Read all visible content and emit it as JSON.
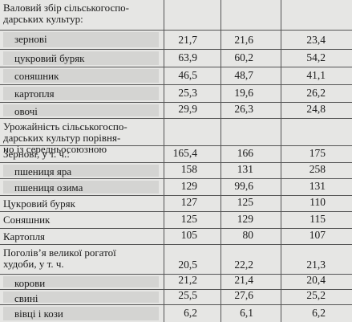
{
  "table": {
    "rows": [
      {
        "label": [
          "Валовий збір сільськогоспо-",
          "дарських культур:"
        ],
        "values": [
          "",
          "",
          ""
        ],
        "indent": false
      },
      {
        "label": [
          "зернові"
        ],
        "values": [
          "21,7",
          "21,6",
          "23,4"
        ],
        "indent": true
      },
      {
        "label": [
          "цукровий буряк"
        ],
        "values": [
          "63,9",
          "60,2",
          "54,2"
        ],
        "indent": true
      },
      {
        "label": [
          "соняшник"
        ],
        "values": [
          "46,5",
          "48,7",
          "41,1"
        ],
        "indent": true
      },
      {
        "label": [
          "картопля"
        ],
        "values": [
          "25,3",
          "19,6",
          "26,2"
        ],
        "indent": true
      },
      {
        "label": [
          "овочі"
        ],
        "values": [
          "29,9",
          "26,3",
          "24,8"
        ],
        "indent": true
      },
      {
        "label": [
          "Урожайність сільськогоспо-",
          "дарських культур порівня-",
          "но із середньосоюзною"
        ],
        "values": [
          "",
          "",
          ""
        ],
        "indent": false
      },
      {
        "label": [
          "Зернові, у т. ч.:"
        ],
        "values": [
          "165,4",
          "166",
          "175"
        ],
        "indent": false
      },
      {
        "label": [
          "пшениця яра"
        ],
        "values": [
          "158",
          "131",
          "258"
        ],
        "indent": true
      },
      {
        "label": [
          "пшениця озима"
        ],
        "values": [
          "129",
          "99,6",
          "131"
        ],
        "indent": true
      },
      {
        "label": [
          "Цукровий буряк"
        ],
        "values": [
          "127",
          "125",
          "110"
        ],
        "indent": false
      },
      {
        "label": [
          "Соняшник"
        ],
        "values": [
          "125",
          "129",
          "115"
        ],
        "indent": false
      },
      {
        "label": [
          "Картопля"
        ],
        "values": [
          "105",
          "80",
          "107"
        ],
        "indent": false
      },
      {
        "label": [
          "Поголів’я великої рогатої",
          "худоби, у т. ч."
        ],
        "values": [
          "20,5",
          "22,2",
          "21,3"
        ],
        "indent": false
      },
      {
        "label": [
          "корови"
        ],
        "values": [
          "21,2",
          "21,4",
          "20,4"
        ],
        "indent": true
      },
      {
        "label": [
          "свині"
        ],
        "values": [
          "25,5",
          "27,6",
          "25,2"
        ],
        "indent": true
      },
      {
        "label": [
          "вівці і кози"
        ],
        "values": [
          "6,2",
          "6,1",
          "6,2"
        ],
        "indent": true
      }
    ]
  }
}
